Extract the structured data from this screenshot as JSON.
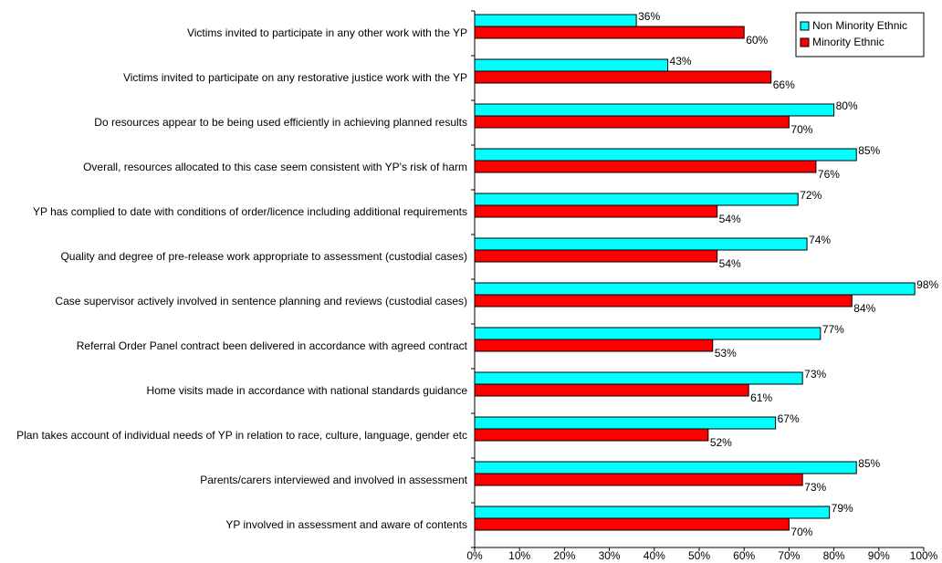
{
  "chart_data": {
    "type": "barh",
    "categories": [
      "Victims invited to participate in any other work with the YP",
      "Victims invited to participate on any restorative justice work with the YP",
      "Do resources appear to be being used efficiently in achieving planned results",
      "Overall, resources allocated to this case seem consistent with YP's risk of harm",
      "YP has complied to date with conditions of order/licence including additional requirements",
      "Quality and degree of pre-release work appropriate to assessment (custodial cases)",
      "Case supervisor actively involved in sentence planning and reviews (custodial cases)",
      "Referral Order Panel contract been delivered in accordance with agreed contract",
      "Home visits made in accordance with national standards guidance",
      "Plan takes account of individual needs of YP in relation to race, culture, language, gender etc",
      "Parents/carers interviewed and involved in assessment",
      "YP involved in assessment and aware of contents"
    ],
    "series": [
      {
        "name": "Non Minority Ethnic",
        "color": "#00ffff",
        "values": [
          36,
          43,
          80,
          85,
          72,
          74,
          98,
          77,
          73,
          67,
          85,
          79
        ],
        "value_labels": [
          "36%",
          "43%",
          "80%",
          "85%",
          "72%",
          "74%",
          "98%",
          "77%",
          "73%",
          "67%",
          "85%",
          "79%"
        ]
      },
      {
        "name": "Minority Ethnic",
        "color": "#ff0000",
        "values": [
          60,
          66,
          70,
          76,
          54,
          54,
          84,
          53,
          61,
          52,
          73,
          70
        ],
        "value_labels": [
          "60%",
          "66%",
          "70%",
          "76%",
          "54%",
          "54%",
          "84%",
          "53%",
          "61%",
          "52%",
          "73%",
          "70%"
        ]
      }
    ],
    "xlim": [
      0,
      100
    ],
    "xticks": [
      {
        "value": 0,
        "label": "0%"
      },
      {
        "value": 10,
        "label": "10%"
      },
      {
        "value": 20,
        "label": "20%"
      },
      {
        "value": 30,
        "label": "30%"
      },
      {
        "value": 40,
        "label": "40%"
      },
      {
        "value": 50,
        "label": "50%"
      },
      {
        "value": 60,
        "label": "60%"
      },
      {
        "value": 70,
        "label": "70%"
      },
      {
        "value": 80,
        "label": "80%"
      },
      {
        "value": 90,
        "label": "90%"
      },
      {
        "value": 100,
        "label": "100%"
      }
    ],
    "legend": "upper right",
    "grid": false
  }
}
